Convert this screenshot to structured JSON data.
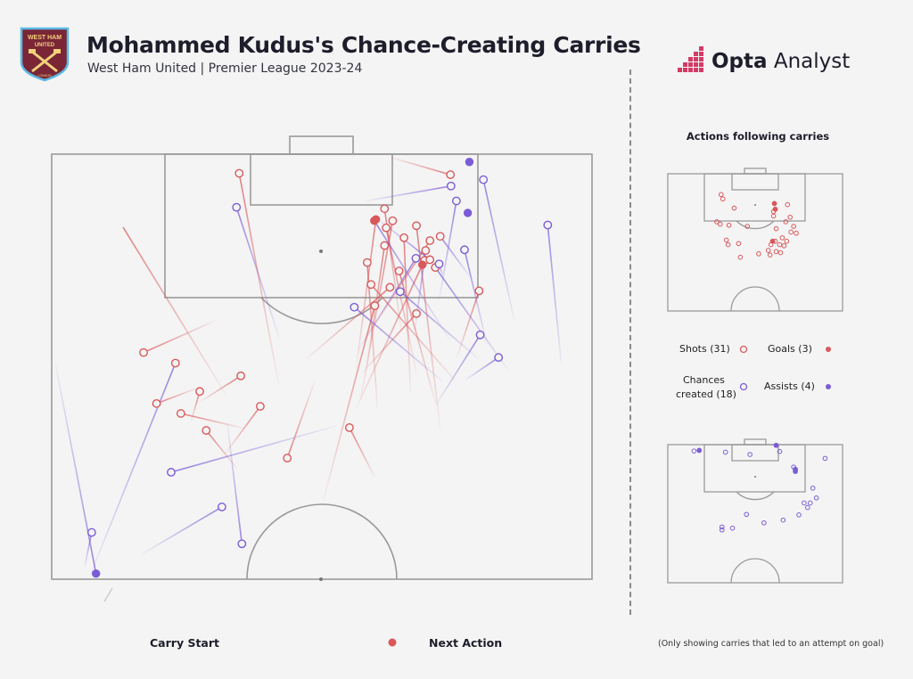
{
  "header": {
    "title": "Mohammed Kudus's Chance-Creating Carries",
    "subtitle": "West Ham United | Premier League 2023-24",
    "brand_strong": "Opta",
    "brand_rest": " Analyst",
    "crest_top": "WEST HAM",
    "crest_mid": "UNITED",
    "crest_bottom": "LONDON"
  },
  "side": {
    "title": "Actions following carries"
  },
  "legend": {
    "shots": "Shots (31)",
    "goals": "Goals (3)",
    "chances_line1": "Chances",
    "chances_line2": "created (18)",
    "assists": "Assists (4)",
    "carry_start": "Carry Start",
    "next_action": "Next Action",
    "note": "(Only showing carries that led to an attempt on goal)"
  },
  "colors": {
    "shot": "#d9585a",
    "chance": "#7b5cd6",
    "pitch_line": "#9a9a9a",
    "background": "#f4f4f4"
  },
  "chart_data": {
    "type": "scatter",
    "pitch_extent": {
      "x": [
        0,
        100
      ],
      "y": [
        0,
        60
      ]
    },
    "carries": [
      {
        "sx": 8.2,
        "sy": 59.2,
        "ex": 0.7,
        "ey": 29.6,
        "kind": "chance"
      },
      {
        "sx": 7.4,
        "sy": 53.4,
        "ex": 6.1,
        "ey": 58.2,
        "kind": "chance"
      },
      {
        "sx": 31.5,
        "sy": 49.8,
        "ex": 16.8,
        "ey": 56.4,
        "kind": "chance"
      },
      {
        "sx": 22.9,
        "sy": 29.5,
        "ex": 7.2,
        "ey": 59.3,
        "kind": "assist"
      },
      {
        "sx": 28.6,
        "sy": 39.0,
        "ex": 34.2,
        "ey": 44.3,
        "kind": "shot"
      },
      {
        "sx": 23.9,
        "sy": 36.6,
        "ex": 35.6,
        "ey": 38.7,
        "kind": "shot"
      },
      {
        "sx": 27.4,
        "sy": 33.5,
        "ex": 25.8,
        "ey": 37.7,
        "kind": "shot"
      },
      {
        "sx": 19.4,
        "sy": 35.2,
        "ex": 27.0,
        "ey": 33.0,
        "kind": "shot"
      },
      {
        "sx": 43.6,
        "sy": 42.9,
        "ex": 48.7,
        "ey": 32.0,
        "kind": "shot"
      },
      {
        "sx": 38.6,
        "sy": 35.6,
        "ex": 32.1,
        "ey": 42.3,
        "kind": "shot"
      },
      {
        "sx": 13.2,
        "sy": 10.3,
        "ex": 32.2,
        "ey": 33.9,
        "kind": "shot"
      },
      {
        "sx": 34.2,
        "sy": 7.5,
        "ex": 42.1,
        "ey": 25.9,
        "kind": "chance"
      },
      {
        "sx": 35.0,
        "sy": 31.3,
        "ex": 27.4,
        "ey": 35.0,
        "kind": "shot"
      },
      {
        "sx": 34.7,
        "sy": 2.7,
        "ex": 42.0,
        "ey": 32.5,
        "kind": "shot"
      },
      {
        "sx": 17.0,
        "sy": 28.0,
        "ex": 30.3,
        "ey": 23.5,
        "kind": "shot"
      },
      {
        "sx": 67.4,
        "sy": 14.7,
        "ex": 56.7,
        "ey": 27.7,
        "kind": "chance"
      },
      {
        "sx": 55.1,
        "sy": 38.6,
        "ex": 59.8,
        "ey": 45.6,
        "kind": "shot"
      },
      {
        "sx": 59.8,
        "sy": 21.4,
        "ex": 50.3,
        "ey": 48.8,
        "kind": "shot"
      },
      {
        "sx": 62.6,
        "sy": 18.8,
        "ex": 47.3,
        "ey": 28.8,
        "kind": "shot"
      },
      {
        "sx": 64.3,
        "sy": 16.5,
        "ex": 71.1,
        "ey": 35.3,
        "kind": "shot"
      },
      {
        "sx": 59.1,
        "sy": 18.4,
        "ex": 74.7,
        "ey": 32.0,
        "kind": "shot"
      },
      {
        "sx": 61.9,
        "sy": 10.4,
        "ex": 67.5,
        "ey": 30.9,
        "kind": "shot"
      },
      {
        "sx": 67.5,
        "sy": 22.5,
        "ex": 57.4,
        "ey": 30.9,
        "kind": "shot"
      },
      {
        "sx": 61.6,
        "sy": 12.9,
        "ex": 58.3,
        "ey": 30.1,
        "kind": "shot"
      },
      {
        "sx": 67.5,
        "sy": 10.1,
        "ex": 71.9,
        "ey": 38.8,
        "kind": "shot"
      },
      {
        "sx": 58.4,
        "sy": 15.3,
        "ex": 60.3,
        "ey": 36.0,
        "kind": "shot"
      },
      {
        "sx": 65.2,
        "sy": 11.8,
        "ex": 66.4,
        "ey": 33.7,
        "kind": "shot"
      },
      {
        "sx": 61.6,
        "sy": 7.7,
        "ex": 64.7,
        "ey": 24.9,
        "kind": "shot"
      },
      {
        "sx": 71.9,
        "sy": 11.6,
        "ex": 77.5,
        "ey": 17.4,
        "kind": "chance"
      },
      {
        "sx": 79.1,
        "sy": 19.3,
        "ex": 75.0,
        "ey": 28.7,
        "kind": "shot"
      },
      {
        "sx": 68.6,
        "sy": 15.6,
        "ex": 56.3,
        "ey": 36.0,
        "kind": "goal"
      },
      {
        "sx": 63.1,
        "sy": 9.4,
        "ex": 57.2,
        "ey": 34.6,
        "kind": "shot"
      },
      {
        "sx": 60.0,
        "sy": 9.2,
        "ex": 56.3,
        "ey": 30.5,
        "kind": "goal"
      },
      {
        "sx": 59.7,
        "sy": 9.4,
        "ex": 73.6,
        "ey": 26.1,
        "kind": "chance"
      },
      {
        "sx": 70.0,
        "sy": 12.2,
        "ex": 57.9,
        "ey": 26.2,
        "kind": "shot"
      },
      {
        "sx": 73.8,
        "sy": 2.9,
        "ex": 62.9,
        "ey": 0.5,
        "kind": "shot"
      },
      {
        "sx": 73.9,
        "sy": 4.5,
        "ex": 58.2,
        "ey": 6.6,
        "kind": "chance"
      },
      {
        "sx": 70.0,
        "sy": 14.9,
        "ex": 59.7,
        "ey": 8.8,
        "kind": "chance"
      },
      {
        "sx": 71.7,
        "sy": 15.5,
        "ex": 72.4,
        "ey": 17.2,
        "kind": "chance"
      },
      {
        "sx": 64.5,
        "sy": 19.4,
        "ex": 79.0,
        "ey": 28.9,
        "kind": "chance"
      },
      {
        "sx": 76.4,
        "sy": 13.5,
        "ex": 80.5,
        "ey": 26.7,
        "kind": "chance"
      },
      {
        "sx": 71.0,
        "sy": 16.0,
        "ex": 84.5,
        "ey": 30.5,
        "kind": "chance"
      },
      {
        "sx": 69.2,
        "sy": 13.6,
        "ex": 67.2,
        "ey": 24.9,
        "kind": "chance"
      },
      {
        "sx": 79.3,
        "sy": 25.5,
        "ex": 71.2,
        "ey": 35.3,
        "kind": "chance"
      },
      {
        "sx": 82.7,
        "sy": 28.7,
        "ex": 76.5,
        "ey": 31.9,
        "kind": "chance"
      },
      {
        "sx": 56.0,
        "sy": 21.6,
        "ex": 72.5,
        "ey": 32.2,
        "kind": "chance"
      },
      {
        "sx": 35.2,
        "sy": 55.0,
        "ex": 32.5,
        "ey": 38.0,
        "kind": "chance"
      },
      {
        "sx": 22.1,
        "sy": 44.9,
        "ex": 52.5,
        "ey": 38.4,
        "kind": "chance"
      },
      {
        "sx": 91.8,
        "sy": 10.0,
        "ex": 94.3,
        "ey": 29.5,
        "kind": "chance"
      },
      {
        "sx": 79.9,
        "sy": 3.6,
        "ex": 85.6,
        "ey": 23.4,
        "kind": "chance"
      },
      {
        "sx": 74.9,
        "sy": 6.6,
        "ex": 71.7,
        "ey": 20.6,
        "kind": "chance"
      }
    ],
    "ends": [
      {
        "x": 7.4,
        "y": 53.4,
        "kind": "chance"
      },
      {
        "x": 8.2,
        "y": 59.2,
        "kind": "assist"
      },
      {
        "x": 31.5,
        "y": 49.8,
        "kind": "chance"
      },
      {
        "x": 27.4,
        "y": 33.5,
        "kind": "shot"
      },
      {
        "x": 28.6,
        "y": 39.0,
        "kind": "shot"
      },
      {
        "x": 23.9,
        "y": 36.6,
        "kind": "shot"
      },
      {
        "x": 22.9,
        "y": 29.5,
        "kind": "shot"
      },
      {
        "x": 19.4,
        "y": 35.2,
        "kind": "shot"
      },
      {
        "x": 43.6,
        "y": 42.9,
        "kind": "shot"
      },
      {
        "x": 38.6,
        "y": 35.6,
        "kind": "shot"
      },
      {
        "x": 34.2,
        "y": 7.5,
        "kind": "chance"
      },
      {
        "x": 35.0,
        "y": 31.3,
        "kind": "shot"
      },
      {
        "x": 34.7,
        "y": 2.7,
        "kind": "shot"
      },
      {
        "x": 17.0,
        "y": 28.0,
        "kind": "shot"
      },
      {
        "x": 59.1,
        "y": 18.4,
        "kind": "shot"
      },
      {
        "x": 58.4,
        "y": 15.3,
        "kind": "shot"
      },
      {
        "x": 59.8,
        "y": 21.4,
        "kind": "shot"
      },
      {
        "x": 62.6,
        "y": 18.8,
        "kind": "shot"
      },
      {
        "x": 61.6,
        "y": 12.9,
        "kind": "shot"
      },
      {
        "x": 61.9,
        "y": 10.4,
        "kind": "shot"
      },
      {
        "x": 63.1,
        "y": 9.4,
        "kind": "shot"
      },
      {
        "x": 65.2,
        "y": 11.8,
        "kind": "shot"
      },
      {
        "x": 64.3,
        "y": 16.5,
        "kind": "shot"
      },
      {
        "x": 67.5,
        "y": 10.1,
        "kind": "shot"
      },
      {
        "x": 70.0,
        "y": 12.2,
        "kind": "shot"
      },
      {
        "x": 67.5,
        "y": 22.5,
        "kind": "shot"
      },
      {
        "x": 55.1,
        "y": 38.6,
        "kind": "shot"
      },
      {
        "x": 61.6,
        "y": 7.7,
        "kind": "shot"
      },
      {
        "x": 69.2,
        "y": 13.6,
        "kind": "shot"
      },
      {
        "x": 69.0,
        "y": 15.0,
        "kind": "shot"
      },
      {
        "x": 70.0,
        "y": 14.9,
        "kind": "shot"
      },
      {
        "x": 71.0,
        "y": 16.0,
        "kind": "shot"
      },
      {
        "x": 73.8,
        "y": 2.9,
        "kind": "shot"
      },
      {
        "x": 71.9,
        "y": 11.6,
        "kind": "shot"
      },
      {
        "x": 79.1,
        "y": 19.3,
        "kind": "shot"
      },
      {
        "x": 60.0,
        "y": 9.2,
        "kind": "goal"
      },
      {
        "x": 59.7,
        "y": 9.4,
        "kind": "goal"
      },
      {
        "x": 68.6,
        "y": 15.6,
        "kind": "goal"
      },
      {
        "x": 64.5,
        "y": 19.4,
        "kind": "chance"
      },
      {
        "x": 67.4,
        "y": 14.7,
        "kind": "chance"
      },
      {
        "x": 76.4,
        "y": 13.5,
        "kind": "chance"
      },
      {
        "x": 71.7,
        "y": 15.5,
        "kind": "chance"
      },
      {
        "x": 79.3,
        "y": 25.5,
        "kind": "chance"
      },
      {
        "x": 82.7,
        "y": 28.7,
        "kind": "chance"
      },
      {
        "x": 73.9,
        "y": 4.5,
        "kind": "chance"
      },
      {
        "x": 91.8,
        "y": 10.0,
        "kind": "chance"
      },
      {
        "x": 79.9,
        "y": 3.6,
        "kind": "chance"
      },
      {
        "x": 35.2,
        "y": 55.0,
        "kind": "chance"
      },
      {
        "x": 22.1,
        "y": 44.9,
        "kind": "chance"
      },
      {
        "x": 74.9,
        "y": 6.6,
        "kind": "chance"
      },
      {
        "x": 56.0,
        "y": 21.6,
        "kind": "chance"
      },
      {
        "x": 77.3,
        "y": 1.1,
        "kind": "assist"
      },
      {
        "x": 77.0,
        "y": 8.3,
        "kind": "assist"
      }
    ],
    "mini_shots": [
      {
        "x": 30.5,
        "y": 9.1,
        "kind": "shot"
      },
      {
        "x": 31.5,
        "y": 11.0,
        "kind": "shot"
      },
      {
        "x": 38.0,
        "y": 15.0,
        "kind": "shot"
      },
      {
        "x": 28.0,
        "y": 21.0,
        "kind": "shot"
      },
      {
        "x": 30.0,
        "y": 22.0,
        "kind": "shot"
      },
      {
        "x": 35.0,
        "y": 22.5,
        "kind": "shot"
      },
      {
        "x": 45.5,
        "y": 23.0,
        "kind": "shot"
      },
      {
        "x": 60.5,
        "y": 16.5,
        "kind": "shot"
      },
      {
        "x": 60.5,
        "y": 18.5,
        "kind": "shot"
      },
      {
        "x": 68.5,
        "y": 13.5,
        "kind": "shot"
      },
      {
        "x": 70.0,
        "y": 19.0,
        "kind": "shot"
      },
      {
        "x": 67.5,
        "y": 21.0,
        "kind": "shot"
      },
      {
        "x": 72.0,
        "y": 23.0,
        "kind": "shot"
      },
      {
        "x": 70.5,
        "y": 25.5,
        "kind": "shot"
      },
      {
        "x": 73.5,
        "y": 26.0,
        "kind": "shot"
      },
      {
        "x": 62.0,
        "y": 24.0,
        "kind": "shot"
      },
      {
        "x": 65.5,
        "y": 28.0,
        "kind": "shot"
      },
      {
        "x": 61.5,
        "y": 29.5,
        "kind": "shot"
      },
      {
        "x": 59.0,
        "y": 31.0,
        "kind": "shot"
      },
      {
        "x": 64.0,
        "y": 31.0,
        "kind": "shot"
      },
      {
        "x": 66.5,
        "y": 31.5,
        "kind": "shot"
      },
      {
        "x": 57.5,
        "y": 33.5,
        "kind": "shot"
      },
      {
        "x": 62.0,
        "y": 34.0,
        "kind": "shot"
      },
      {
        "x": 64.5,
        "y": 34.5,
        "kind": "shot"
      },
      {
        "x": 52.0,
        "y": 35.0,
        "kind": "shot"
      },
      {
        "x": 40.5,
        "y": 30.5,
        "kind": "shot"
      },
      {
        "x": 33.5,
        "y": 29.0,
        "kind": "shot"
      },
      {
        "x": 34.5,
        "y": 31.0,
        "kind": "shot"
      },
      {
        "x": 41.5,
        "y": 36.5,
        "kind": "shot"
      },
      {
        "x": 58.5,
        "y": 35.5,
        "kind": "shot"
      },
      {
        "x": 68.0,
        "y": 29.5,
        "kind": "shot"
      },
      {
        "x": 61.0,
        "y": 13.0,
        "kind": "goal"
      },
      {
        "x": 61.5,
        "y": 15.5,
        "kind": "goal"
      },
      {
        "x": 60.0,
        "y": 29.5,
        "kind": "goal"
      }
    ],
    "mini_chances": [
      {
        "x": 15.0,
        "y": 2.8,
        "kind": "chance"
      },
      {
        "x": 33.0,
        "y": 3.3,
        "kind": "chance"
      },
      {
        "x": 47.0,
        "y": 4.3,
        "kind": "chance"
      },
      {
        "x": 64.0,
        "y": 3.0,
        "kind": "chance"
      },
      {
        "x": 72.0,
        "y": 9.8,
        "kind": "chance"
      },
      {
        "x": 90.0,
        "y": 6.0,
        "kind": "chance"
      },
      {
        "x": 83.0,
        "y": 19.0,
        "kind": "chance"
      },
      {
        "x": 85.0,
        "y": 23.3,
        "kind": "chance"
      },
      {
        "x": 78.0,
        "y": 25.5,
        "kind": "chance"
      },
      {
        "x": 81.5,
        "y": 25.5,
        "kind": "chance"
      },
      {
        "x": 80.0,
        "y": 27.5,
        "kind": "chance"
      },
      {
        "x": 75.0,
        "y": 30.7,
        "kind": "chance"
      },
      {
        "x": 45.0,
        "y": 30.5,
        "kind": "chance"
      },
      {
        "x": 66.0,
        "y": 33.0,
        "kind": "chance"
      },
      {
        "x": 55.0,
        "y": 34.2,
        "kind": "chance"
      },
      {
        "x": 37.0,
        "y": 36.5,
        "kind": "chance"
      },
      {
        "x": 31.0,
        "y": 36.0,
        "kind": "chance"
      },
      {
        "x": 31.0,
        "y": 37.3,
        "kind": "chance"
      },
      {
        "x": 18.0,
        "y": 2.5,
        "kind": "assist"
      },
      {
        "x": 62.0,
        "y": 0.3,
        "kind": "assist"
      },
      {
        "x": 73.0,
        "y": 10.8,
        "kind": "assist"
      },
      {
        "x": 73.0,
        "y": 11.7,
        "kind": "assist"
      }
    ]
  }
}
